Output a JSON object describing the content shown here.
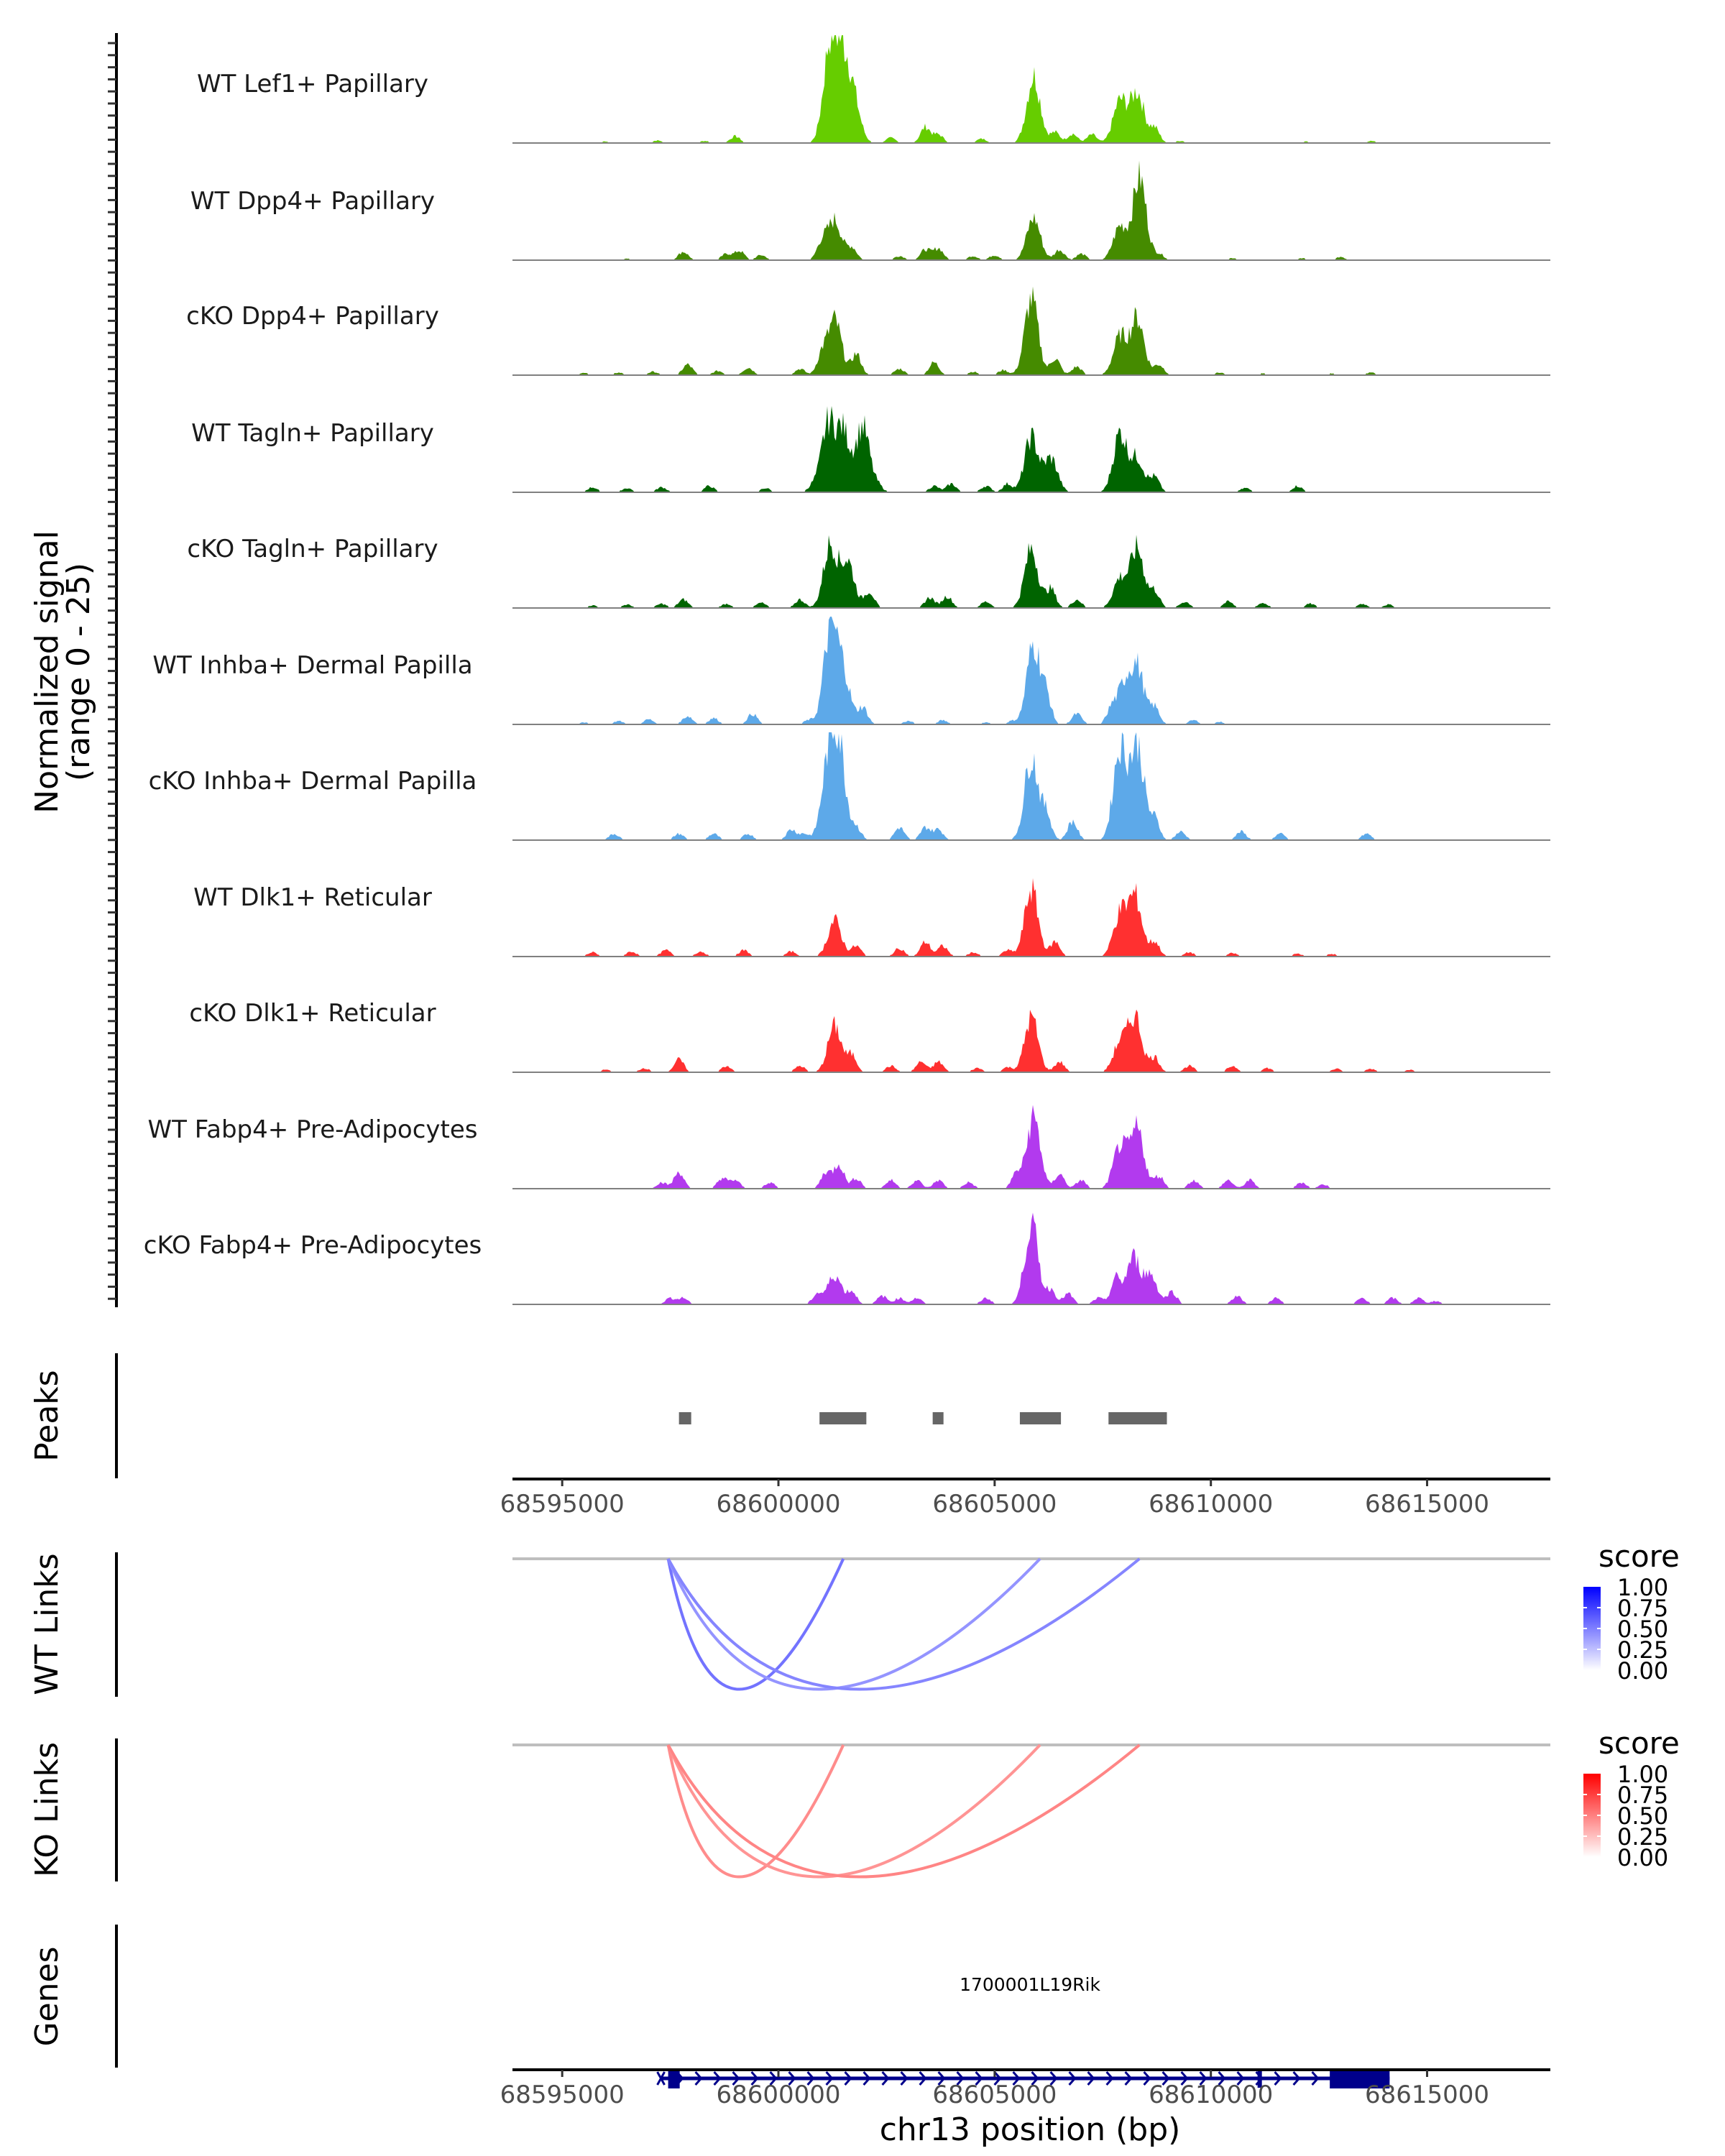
{
  "chart_data": {
    "type": "area",
    "title": "",
    "region": {
      "chromosome": "chr13",
      "start": 68593850,
      "end": 68617850
    },
    "xlabel": "chr13 position (bp)",
    "ylabel_line1": "Normalized signal",
    "ylabel_line2": "(range 0 - 25)",
    "ylim": [
      0,
      25
    ],
    "x_ticks": [
      68595000,
      68600000,
      68605000,
      68610000,
      68615000
    ],
    "x_tick_labels": [
      "68595000",
      "68600000",
      "68605000",
      "68610000",
      "68615000"
    ],
    "coverage_tracks": [
      {
        "name": "WT Lef1+ Papillary",
        "color": "#66CD00",
        "peaks": [
          [
            68596000,
            0.4
          ],
          [
            68597200,
            0.6
          ],
          [
            68598300,
            0.5
          ],
          [
            68599000,
            1.6
          ],
          [
            68601200,
            23.5
          ],
          [
            68601500,
            18.0
          ],
          [
            68601750,
            8.5
          ],
          [
            68602600,
            1.2
          ],
          [
            68603400,
            3.8
          ],
          [
            68603700,
            2.0
          ],
          [
            68604700,
            1.0
          ],
          [
            68605900,
            16.0
          ],
          [
            68606400,
            2.5
          ],
          [
            68606800,
            2.2
          ],
          [
            68607250,
            2.0
          ],
          [
            68607900,
            10.0
          ],
          [
            68608300,
            12.0
          ],
          [
            68608700,
            3.5
          ],
          [
            68609300,
            0.5
          ],
          [
            68610200,
            0.3
          ],
          [
            68612200,
            0.4
          ],
          [
            68613700,
            0.5
          ],
          [
            68614200,
            0.3
          ]
        ]
      },
      {
        "name": "WT Dpp4+ Papillary",
        "color": "#458B00",
        "peaks": [
          [
            68596500,
            0.4
          ],
          [
            68597800,
            2.0
          ],
          [
            68598800,
            1.5
          ],
          [
            68599100,
            2.2
          ],
          [
            68599600,
            1.2
          ],
          [
            68601000,
            4.0
          ],
          [
            68601300,
            9.5
          ],
          [
            68601700,
            3.0
          ],
          [
            68602800,
            1.0
          ],
          [
            68603400,
            2.5
          ],
          [
            68603700,
            2.8
          ],
          [
            68604500,
            1.0
          ],
          [
            68605000,
            1.2
          ],
          [
            68605900,
            10.0
          ],
          [
            68606500,
            2.5
          ],
          [
            68607000,
            1.5
          ],
          [
            68607900,
            8.0
          ],
          [
            68608350,
            19.5
          ],
          [
            68608800,
            1.5
          ],
          [
            68610500,
            0.5
          ],
          [
            68612100,
            0.5
          ],
          [
            68613000,
            0.7
          ]
        ]
      },
      {
        "name": "cKO Dpp4+ Papillary",
        "color": "#458B00",
        "peaks": [
          [
            68595500,
            0.5
          ],
          [
            68596300,
            0.6
          ],
          [
            68597100,
            0.8
          ],
          [
            68597900,
            2.5
          ],
          [
            68598600,
            1.0
          ],
          [
            68599300,
            1.8
          ],
          [
            68600500,
            1.5
          ],
          [
            68601000,
            4.5
          ],
          [
            68601300,
            13.0
          ],
          [
            68601800,
            5.0
          ],
          [
            68602800,
            1.5
          ],
          [
            68603600,
            3.0
          ],
          [
            68604500,
            0.8
          ],
          [
            68605200,
            1.2
          ],
          [
            68605850,
            18.0
          ],
          [
            68606400,
            4.0
          ],
          [
            68606900,
            2.0
          ],
          [
            68607900,
            9.0
          ],
          [
            68608300,
            13.5
          ],
          [
            68608800,
            2.5
          ],
          [
            68610200,
            0.6
          ],
          [
            68611200,
            0.4
          ],
          [
            68612800,
            0.4
          ],
          [
            68613700,
            0.6
          ],
          [
            68614500,
            0.3
          ]
        ]
      },
      {
        "name": "WT Tagln+ Papillary",
        "color": "#006400",
        "peaks": [
          [
            68595700,
            1.2
          ],
          [
            68596500,
            1.0
          ],
          [
            68597300,
            1.2
          ],
          [
            68598400,
            1.5
          ],
          [
            68599700,
            1.0
          ],
          [
            68600800,
            1.5
          ],
          [
            68601150,
            16.0
          ],
          [
            68601500,
            14.0
          ],
          [
            68601950,
            15.5
          ],
          [
            68602300,
            1.5
          ],
          [
            68603600,
            1.5
          ],
          [
            68604000,
            2.0
          ],
          [
            68604800,
            1.5
          ],
          [
            68605300,
            2.0
          ],
          [
            68605850,
            13.0
          ],
          [
            68606300,
            8.0
          ],
          [
            68607900,
            14.0
          ],
          [
            68608300,
            8.0
          ],
          [
            68608700,
            3.5
          ],
          [
            68610800,
            1.0
          ],
          [
            68612000,
            1.5
          ]
        ]
      },
      {
        "name": "cKO Tagln+ Papillary",
        "color": "#006400",
        "peaks": [
          [
            68595700,
            0.6
          ],
          [
            68596500,
            0.8
          ],
          [
            68597300,
            1.0
          ],
          [
            68597800,
            2.0
          ],
          [
            68598800,
            1.0
          ],
          [
            68599600,
            1.2
          ],
          [
            68600500,
            2.0
          ],
          [
            68601200,
            15.0
          ],
          [
            68601600,
            11.0
          ],
          [
            68602100,
            4.0
          ],
          [
            68603500,
            2.5
          ],
          [
            68603900,
            2.8
          ],
          [
            68604800,
            1.5
          ],
          [
            68605850,
            14.0
          ],
          [
            68606300,
            4.5
          ],
          [
            68606900,
            2.0
          ],
          [
            68607900,
            7.0
          ],
          [
            68608300,
            14.0
          ],
          [
            68608700,
            4.0
          ],
          [
            68609400,
            1.5
          ],
          [
            68610400,
            1.5
          ],
          [
            68611200,
            1.2
          ],
          [
            68612300,
            1.0
          ],
          [
            68613500,
            1.0
          ],
          [
            68614100,
            0.8
          ]
        ]
      },
      {
        "name": "WT Inhba+ Dermal Papilla",
        "color": "#5DA9E9",
        "peaks": [
          [
            68595500,
            0.5
          ],
          [
            68596300,
            0.8
          ],
          [
            68597000,
            1.2
          ],
          [
            68597900,
            2.0
          ],
          [
            68598500,
            1.5
          ],
          [
            68599400,
            2.5
          ],
          [
            68600700,
            1.0
          ],
          [
            68601200,
            22.0
          ],
          [
            68601500,
            12.0
          ],
          [
            68601950,
            4.0
          ],
          [
            68603000,
            0.8
          ],
          [
            68603800,
            1.0
          ],
          [
            68604800,
            0.5
          ],
          [
            68605400,
            0.8
          ],
          [
            68605900,
            19.0
          ],
          [
            68606200,
            6.0
          ],
          [
            68606900,
            2.5
          ],
          [
            68607700,
            3.5
          ],
          [
            68608000,
            9.0
          ],
          [
            68608300,
            13.0
          ],
          [
            68608700,
            4.0
          ],
          [
            68609600,
            1.0
          ],
          [
            68610200,
            0.6
          ]
        ]
      },
      {
        "name": "cKO Inhba+ Dermal Papilla",
        "color": "#5DA9E9",
        "peaks": [
          [
            68596200,
            1.5
          ],
          [
            68597700,
            1.5
          ],
          [
            68598500,
            1.5
          ],
          [
            68599300,
            1.5
          ],
          [
            68600300,
            2.5
          ],
          [
            68600600,
            1.5
          ],
          [
            68601150,
            17.0
          ],
          [
            68601400,
            21.0
          ],
          [
            68601800,
            3.0
          ],
          [
            68602800,
            3.0
          ],
          [
            68603400,
            3.0
          ],
          [
            68603700,
            2.5
          ],
          [
            68605850,
            20.0
          ],
          [
            68606200,
            6.0
          ],
          [
            68606800,
            4.5
          ],
          [
            68607900,
            22.0
          ],
          [
            68608300,
            22.5
          ],
          [
            68608700,
            5.0
          ],
          [
            68609300,
            2.0
          ],
          [
            68610700,
            2.0
          ],
          [
            68611600,
            1.5
          ],
          [
            68613600,
            1.5
          ]
        ]
      },
      {
        "name": "WT Dlk1+ Reticular",
        "color": "#FF3030",
        "peaks": [
          [
            68595700,
            1.0
          ],
          [
            68596600,
            1.2
          ],
          [
            68597400,
            1.5
          ],
          [
            68598200,
            1.2
          ],
          [
            68599200,
            1.5
          ],
          [
            68600300,
            1.2
          ],
          [
            68601300,
            8.5
          ],
          [
            68601800,
            2.5
          ],
          [
            68602800,
            2.0
          ],
          [
            68603400,
            3.5
          ],
          [
            68603800,
            2.5
          ],
          [
            68604500,
            1.0
          ],
          [
            68605300,
            1.5
          ],
          [
            68605850,
            16.0
          ],
          [
            68606400,
            3.5
          ],
          [
            68607900,
            10.0
          ],
          [
            68608250,
            14.0
          ],
          [
            68608700,
            3.5
          ],
          [
            68609500,
            1.0
          ],
          [
            68610500,
            0.8
          ],
          [
            68612000,
            0.7
          ],
          [
            68612800,
            0.6
          ]
        ]
      },
      {
        "name": "cKO Dlk1+ Reticular",
        "color": "#FF3030",
        "peaks": [
          [
            68596000,
            0.6
          ],
          [
            68596900,
            1.0
          ],
          [
            68597700,
            3.0
          ],
          [
            68598800,
            1.5
          ],
          [
            68600500,
            1.5
          ],
          [
            68601300,
            11.0
          ],
          [
            68601700,
            4.0
          ],
          [
            68602600,
            1.5
          ],
          [
            68603300,
            2.5
          ],
          [
            68603700,
            2.5
          ],
          [
            68604600,
            1.0
          ],
          [
            68605300,
            1.2
          ],
          [
            68605850,
            13.0
          ],
          [
            68606500,
            2.5
          ],
          [
            68607900,
            7.0
          ],
          [
            68608250,
            13.0
          ],
          [
            68608700,
            3.5
          ],
          [
            68609500,
            1.5
          ],
          [
            68610500,
            1.5
          ],
          [
            68611300,
            1.0
          ],
          [
            68612900,
            0.8
          ],
          [
            68613700,
            0.8
          ],
          [
            68614600,
            0.6
          ]
        ]
      },
      {
        "name": "WT Fabp4+ Pre-Adipocytes",
        "color": "#B23AEE",
        "peaks": [
          [
            68597300,
            1.5
          ],
          [
            68597700,
            4.0
          ],
          [
            68598700,
            2.5
          ],
          [
            68599000,
            2.0
          ],
          [
            68599800,
            1.5
          ],
          [
            68601100,
            4.0
          ],
          [
            68601400,
            6.0
          ],
          [
            68601800,
            2.5
          ],
          [
            68602600,
            2.0
          ],
          [
            68603200,
            2.0
          ],
          [
            68603700,
            2.0
          ],
          [
            68604400,
            1.5
          ],
          [
            68605500,
            3.5
          ],
          [
            68605900,
            17.0
          ],
          [
            68606500,
            3.5
          ],
          [
            68607000,
            2.0
          ],
          [
            68607900,
            10.0
          ],
          [
            68608300,
            14.0
          ],
          [
            68608800,
            3.0
          ],
          [
            68609600,
            2.0
          ],
          [
            68610400,
            2.0
          ],
          [
            68610900,
            2.0
          ],
          [
            68612100,
            1.5
          ],
          [
            68612600,
            1.0
          ]
        ]
      },
      {
        "name": "cKO Fabp4+ Pre-Adipocytes",
        "color": "#B23AEE",
        "peaks": [
          [
            68597500,
            1.5
          ],
          [
            68597800,
            1.5
          ],
          [
            68600900,
            2.5
          ],
          [
            68601300,
            7.0
          ],
          [
            68601700,
            3.0
          ],
          [
            68602400,
            2.0
          ],
          [
            68602800,
            1.5
          ],
          [
            68603200,
            1.5
          ],
          [
            68604800,
            1.5
          ],
          [
            68605850,
            19.0
          ],
          [
            68606300,
            3.5
          ],
          [
            68606700,
            2.5
          ],
          [
            68607400,
            1.5
          ],
          [
            68607800,
            6.0
          ],
          [
            68608200,
            11.0
          ],
          [
            68608600,
            7.0
          ],
          [
            68609100,
            3.0
          ],
          [
            68610600,
            2.0
          ],
          [
            68611500,
            1.5
          ],
          [
            68613500,
            1.5
          ],
          [
            68614200,
            1.5
          ],
          [
            68614800,
            1.5
          ],
          [
            68615200,
            0.8
          ]
        ]
      }
    ],
    "peaks_track": {
      "label": "Peaks",
      "color": "#666666",
      "regions": [
        [
          68597700,
          68597983
        ],
        [
          68600950,
          68602033
        ],
        [
          68603567,
          68603817
        ],
        [
          68605583,
          68606533
        ],
        [
          68607633,
          68608983
        ]
      ]
    },
    "link_tracks": [
      {
        "label": "WT Links",
        "legend_title": "score",
        "high_color": "#0000FF",
        "low_color": "#FFFFFF",
        "links": [
          {
            "start": 68597450,
            "end": 68601500,
            "score": 0.55
          },
          {
            "start": 68597450,
            "end": 68606050,
            "score": 0.42
          },
          {
            "start": 68597450,
            "end": 68608350,
            "score": 0.48
          }
        ]
      },
      {
        "label": "KO Links",
        "legend_title": "score",
        "high_color": "#FF0000",
        "low_color": "#FFFFFF",
        "links": [
          {
            "start": 68597450,
            "end": 68601500,
            "score": 0.45
          },
          {
            "start": 68597450,
            "end": 68606050,
            "score": 0.42
          },
          {
            "start": 68597450,
            "end": 68608350,
            "score": 0.48
          }
        ]
      }
    ],
    "legend_ticks": [
      "1.00",
      "0.75",
      "0.50",
      "0.25",
      "0.00"
    ],
    "gene_track": {
      "label": "Genes",
      "color": "#00008B",
      "gene_name": "1700001L19Rik",
      "strand": "+",
      "start": 68597300,
      "end": 68614133,
      "exons": [
        [
          68597450,
          68597717
        ],
        [
          68611080,
          68611180
        ],
        [
          68612750,
          68614133
        ]
      ]
    }
  }
}
